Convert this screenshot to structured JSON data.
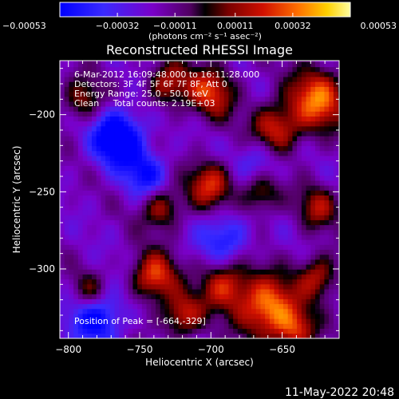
{
  "chart_data": {
    "type": "heatmap",
    "title": "Reconstructed RHESSI Image",
    "xlabel": "Heliocentric X (arcsec)",
    "ylabel": "Heliocentric Y (arcsec)",
    "xlim": [
      -806,
      -610
    ],
    "ylim": [
      -345,
      -165
    ],
    "xticks": [
      -800,
      -750,
      -700,
      -650
    ],
    "xtick_labels": [
      "−800",
      "−750",
      "−700",
      "−650"
    ],
    "yticks": [
      -200,
      -250,
      -300
    ],
    "ytick_labels": [
      "−200",
      "−250",
      "−300"
    ],
    "colorbar": {
      "range": [
        -0.00053,
        0.00053
      ],
      "tick_values": [
        -0.00053,
        -0.00032,
        -0.00011,
        0.00011,
        0.00032,
        0.00053
      ],
      "tick_labels": [
        "−0.00053",
        "−0.00032",
        "−0.00011",
        "0.00011",
        "0.00032",
        "0.00053"
      ],
      "units": "(photons cm⁻² s⁻¹ asec⁻²)"
    },
    "peak": [
      -664,
      -329
    ],
    "image_sources": [
      {
        "x": -625,
        "y": -190,
        "amp": 0.0005,
        "w": 14
      },
      {
        "x": -655,
        "y": -210,
        "amp": 0.00042,
        "w": 12
      },
      {
        "x": -700,
        "y": -185,
        "amp": 0.0004,
        "w": 12
      },
      {
        "x": -730,
        "y": -180,
        "amp": 0.00035,
        "w": 10
      },
      {
        "x": -790,
        "y": -190,
        "amp": 0.0003,
        "w": 10
      },
      {
        "x": -700,
        "y": -245,
        "amp": 0.0004,
        "w": 11
      },
      {
        "x": -735,
        "y": -260,
        "amp": 0.00035,
        "w": 10
      },
      {
        "x": -665,
        "y": -250,
        "amp": 0.00033,
        "w": 10
      },
      {
        "x": -625,
        "y": -260,
        "amp": 0.0003,
        "w": 10
      },
      {
        "x": -660,
        "y": -325,
        "amp": 0.00055,
        "w": 14
      },
      {
        "x": -690,
        "y": -310,
        "amp": 0.0004,
        "w": 12
      },
      {
        "x": -740,
        "y": -305,
        "amp": 0.00045,
        "w": 11
      },
      {
        "x": -720,
        "y": -330,
        "amp": 0.00038,
        "w": 10
      },
      {
        "x": -785,
        "y": -315,
        "amp": 0.0003,
        "w": 9
      },
      {
        "x": -625,
        "y": -305,
        "amp": 0.00035,
        "w": 10
      },
      {
        "x": -640,
        "y": -340,
        "amp": 0.00035,
        "w": 10
      },
      {
        "x": -765,
        "y": -215,
        "amp": -0.0005,
        "w": 13
      },
      {
        "x": -780,
        "y": -330,
        "amp": -0.0004,
        "w": 13
      },
      {
        "x": -690,
        "y": -280,
        "amp": -0.0003,
        "w": 12
      },
      {
        "x": -665,
        "y": -230,
        "amp": -0.00025,
        "w": 12
      },
      {
        "x": -745,
        "y": -240,
        "amp": -0.0003,
        "w": 11
      }
    ]
  },
  "info": {
    "line1": "6-Mar-2012 16:09:48.000 to 16:11:28.000",
    "line2": "Detectors: 3F 4F 5F 6F 7F 8F, Att 0",
    "line3": "Energy Range: 25.0 - 50.0 keV",
    "line4": "Clean     Total counts: 2.19E+03",
    "peak_label": "Position of Peak = [-664,-329]"
  },
  "footer": {
    "timestamp": "11-May-2022 20:48"
  }
}
